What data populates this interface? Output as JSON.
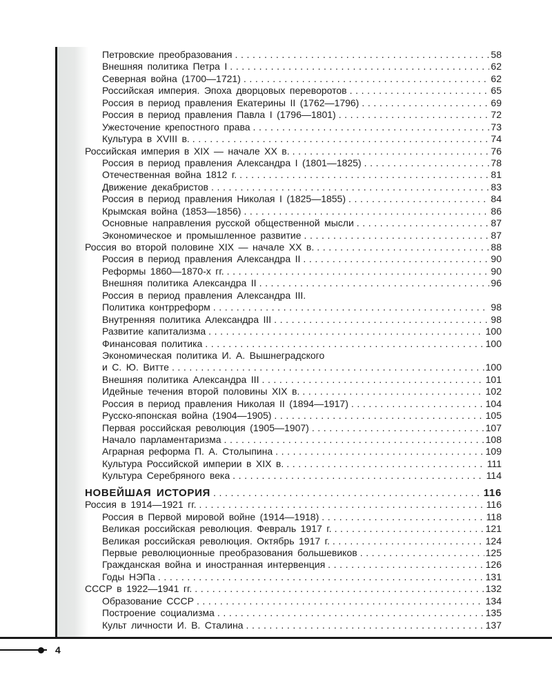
{
  "page": {
    "number": "4"
  },
  "colors": {
    "ink": "#1c1c1c",
    "rule": "#1a1a1a",
    "gutter_shade": "#e5e7e6",
    "background": "#ffffff"
  },
  "toc": {
    "entries": [
      {
        "text": "Петровские преобразования",
        "page": "58",
        "level": 1
      },
      {
        "text": "Внешняя политика Петра I",
        "page": "62",
        "level": 1
      },
      {
        "text": "Северная война (1700—1721)",
        "page": "62",
        "level": 1
      },
      {
        "text": "Российская империя. Эпоха дворцовых переворотов",
        "page": "65",
        "level": 1
      },
      {
        "text": "Россия в период правления Екатерины II (1762—1796)",
        "page": "69",
        "level": 1
      },
      {
        "text": "Россия в период правления Павла I (1796—1801)",
        "page": "72",
        "level": 1
      },
      {
        "text": "Ужесточение крепостного права",
        "page": "73",
        "level": 1
      },
      {
        "text": "Культура в XVIII в.",
        "page": "74",
        "level": 1
      },
      {
        "text": "Российская империя в XIX — начале XX в.",
        "page": "76",
        "level": 0
      },
      {
        "text": "Россия в период правления Александра I (1801—1825)",
        "page": "78",
        "level": 1
      },
      {
        "text": "Отечественная война 1812 г.",
        "page": "81",
        "level": 1
      },
      {
        "text": "Движение декабристов",
        "page": "83",
        "level": 1
      },
      {
        "text": "Россия в период правления Николая I (1825—1855)",
        "page": "84",
        "level": 1
      },
      {
        "text": "Крымская война (1853—1856)",
        "page": "86",
        "level": 1
      },
      {
        "text": "Основные направления русской общественной мысли",
        "page": "87",
        "level": 1
      },
      {
        "text": "Экономическое и промышленное развитие",
        "page": "87",
        "level": 1
      },
      {
        "text": "Россия во второй половине XIX — начале XX в.",
        "page": "88",
        "level": 0
      },
      {
        "text": "Россия в период правления Александра II",
        "page": "90",
        "level": 1
      },
      {
        "text": "Реформы 1860—1870-х гг.",
        "page": "90",
        "level": 1
      },
      {
        "text": "Внешняя политика Александра II",
        "page": "96",
        "level": 1
      },
      {
        "text": "Россия в период правления Александра III.",
        "page": null,
        "level": 1
      },
      {
        "text": "Политика контрреформ",
        "page": "98",
        "level": 1
      },
      {
        "text": "Внутренняя политика Александра III",
        "page": "98",
        "level": 1
      },
      {
        "text": "Развитие капитализма",
        "page": "100",
        "level": 1
      },
      {
        "text": "Финансовая политика",
        "page": "100",
        "level": 1
      },
      {
        "text": "Экономическая политика И. А. Вышнеградского",
        "page": null,
        "level": 1
      },
      {
        "text": "и С. Ю. Витте",
        "page": "100",
        "level": 1
      },
      {
        "text": "Внешняя политика Александра III",
        "page": "101",
        "level": 1
      },
      {
        "text": "Идейные течения второй половины XIX в.",
        "page": "102",
        "level": 1
      },
      {
        "text": "Россия в период правления Николая II (1894—1917)",
        "page": "104",
        "level": 1
      },
      {
        "text": "Русско-японская война (1904—1905)",
        "page": "105",
        "level": 1
      },
      {
        "text": "Первая российская революция (1905—1907)",
        "page": "107",
        "level": 1
      },
      {
        "text": "Начало парламентаризма",
        "page": "108",
        "level": 1
      },
      {
        "text": "Аграрная реформа П. А. Столыпина",
        "page": "109",
        "level": 1
      },
      {
        "text": "Культура Российской империи в XIX в.",
        "page": "111",
        "level": 1
      },
      {
        "text": "Культура Серебряного века",
        "page": "114",
        "level": 1
      },
      {
        "text": "НОВЕЙШАЯ ИСТОРИЯ",
        "page": "116",
        "level": 0,
        "bold": true,
        "gap": true
      },
      {
        "text": "Россия в 1914—1921 гг.",
        "page": "116",
        "level": 0
      },
      {
        "text": "Россия в Первой мировой войне (1914—1918)",
        "page": "118",
        "level": 1
      },
      {
        "text": "Великая российская революция. Февраль 1917 г.",
        "page": "121",
        "level": 1
      },
      {
        "text": "Великая российская революция. Октябрь 1917 г.",
        "page": "124",
        "level": 1
      },
      {
        "text": "Первые революционные преобразования большевиков",
        "page": "125",
        "level": 1
      },
      {
        "text": "Гражданская война и иностранная интервенция",
        "page": "126",
        "level": 1
      },
      {
        "text": "Годы НЭПа",
        "page": "131",
        "level": 1
      },
      {
        "text": "СССР в 1922—1941 гг.",
        "page": "132",
        "level": 0
      },
      {
        "text": "Образование СССР",
        "page": "134",
        "level": 1
      },
      {
        "text": "Построение социализма",
        "page": "135",
        "level": 1
      },
      {
        "text": "Культ личности И. В. Сталина",
        "page": "137",
        "level": 1
      }
    ]
  }
}
